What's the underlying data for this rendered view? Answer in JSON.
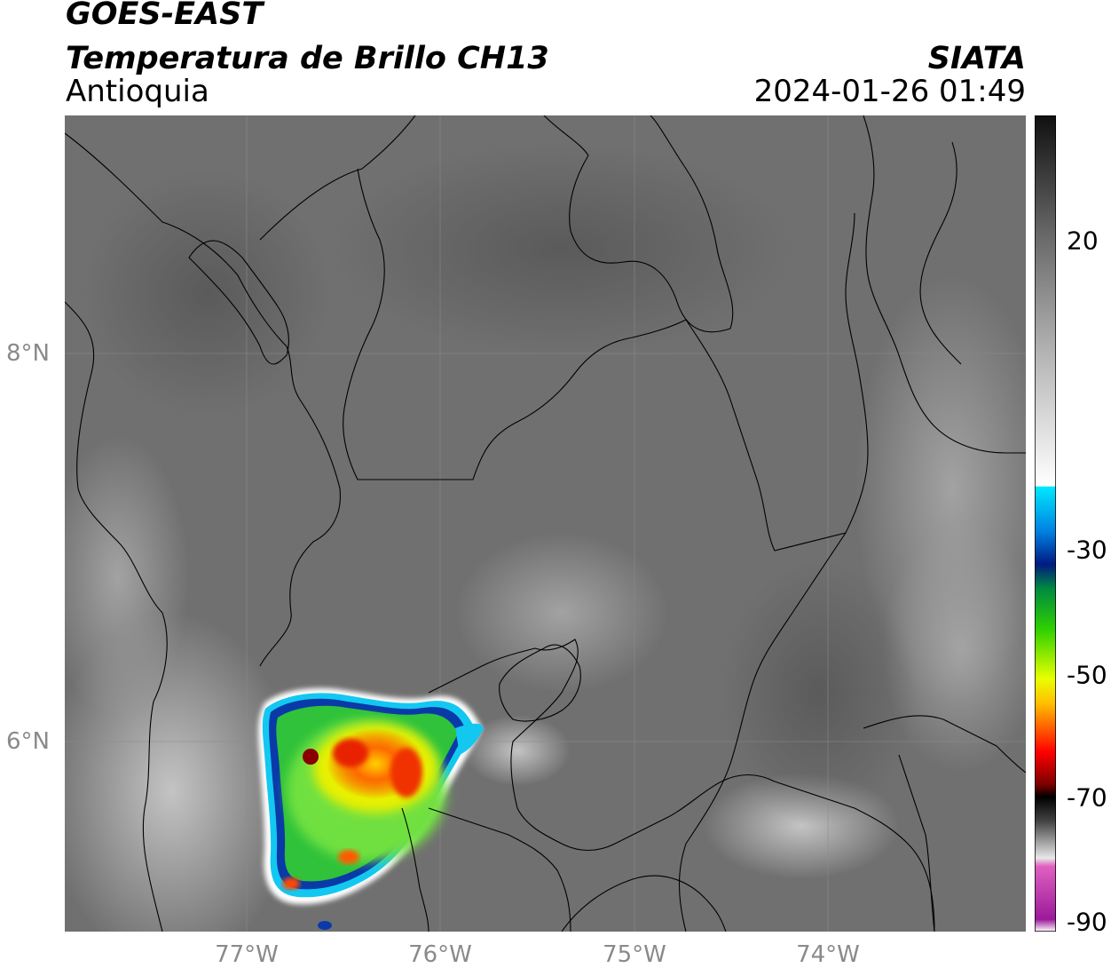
{
  "header": {
    "satellite": "GOES-EAST",
    "product": "Temperatura de Brillo CH13",
    "region": "Antioquia",
    "organization": "SIATA",
    "datetime": "2024-01-26 01:49"
  },
  "map": {
    "lat_labels": [
      "8°N",
      "6°N"
    ],
    "lon_labels": [
      "77°W",
      "76°W",
      "75°W",
      "74°W"
    ],
    "background_color": "#6f6f6f",
    "land_line_color": "#000000",
    "grid_color": "#8c8c8c"
  },
  "colorbar": {
    "tick_labels": [
      "20",
      "-30",
      "-50",
      "-70",
      "-90"
    ],
    "stops": [
      {
        "v": 0.0,
        "c": "#ffffff"
      },
      {
        "v": 0.015,
        "c": "#9b1a9b"
      },
      {
        "v": 0.08,
        "c": "#e060c0"
      },
      {
        "v": 0.09,
        "c": "#e8e8e8"
      },
      {
        "v": 0.135,
        "c": "#444444"
      },
      {
        "v": 0.165,
        "c": "#000000"
      },
      {
        "v": 0.18,
        "c": "#7a0000"
      },
      {
        "v": 0.22,
        "c": "#ff0000"
      },
      {
        "v": 0.28,
        "c": "#ffc000"
      },
      {
        "v": 0.31,
        "c": "#e8ff00"
      },
      {
        "v": 0.37,
        "c": "#30d000"
      },
      {
        "v": 0.42,
        "c": "#008a40"
      },
      {
        "v": 0.45,
        "c": "#001a80"
      },
      {
        "v": 0.49,
        "c": "#0080e0"
      },
      {
        "v": 0.545,
        "c": "#00e8ff"
      },
      {
        "v": 0.546,
        "c": "#ffffff"
      },
      {
        "v": 0.7,
        "c": "#b8b8b8"
      },
      {
        "v": 0.85,
        "c": "#6a6a6a"
      },
      {
        "v": 1.0,
        "c": "#101010"
      }
    ]
  }
}
